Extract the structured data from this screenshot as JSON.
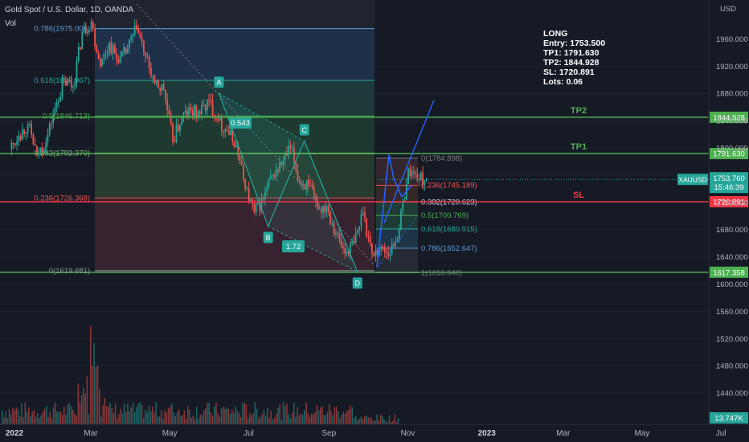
{
  "header": {
    "symbol_title": "Gold Spot / U.S. Dollar, 1D, OANDA",
    "volume_label": "Vol",
    "currency": "USD"
  },
  "trade_box": {
    "lines": [
      "LONG",
      "Entry: 1753.500",
      "TP1: 1791.630",
      "TP2: 1844.928",
      "SL: 1720.891",
      "Lots: 0.06"
    ]
  },
  "colors": {
    "background": "#161a25",
    "up": "#26a69a",
    "down": "#ef5350",
    "tp_line": "#4caf50",
    "sl_line": "#f23645",
    "pattern": "#2962ff"
  },
  "chart_data": {
    "type": "candlestick",
    "title": "Gold Spot / U.S. Dollar, 1D, OANDA",
    "y_axis": {
      "ticks": [
        1440,
        1480,
        1520,
        1560,
        1600,
        1640,
        1680,
        1720,
        1760,
        1800,
        1840,
        1880,
        1920,
        1960
      ],
      "tick_labels": [
        "1440.000",
        "1480.000",
        "1520.000",
        "1560.000",
        "1600.000",
        "1640.000",
        "1680.000",
        "1720.000",
        "1760.000",
        "1800.000",
        "1840.000",
        "1880.000",
        "1920.000",
        "1960.000"
      ]
    },
    "x_axis": {
      "ticks": [
        "2022-01-01",
        "2022-03-01",
        "2022-05-01",
        "2022-07-01",
        "2022-09-01",
        "2022-11-01",
        "2023-01-01",
        "2023-03-01",
        "2023-05-01",
        "2023-07-01"
      ],
      "tick_labels": [
        "2022",
        "Mar",
        "May",
        "Jul",
        "Sep",
        "Nov",
        "2023",
        "Mar",
        "May",
        "Jul"
      ]
    },
    "horizontal_levels": [
      {
        "label": "TP2",
        "value": 1844.928,
        "price_label": "1844.928",
        "color": "#4caf50"
      },
      {
        "label": "TP1",
        "value": 1791.63,
        "price_label": "1791.630",
        "color": "#4caf50"
      },
      {
        "label": "SL",
        "value": 1720.891,
        "price_label": "1720.891",
        "color": "#f23645"
      },
      {
        "label": "",
        "value": 1617.358,
        "price_label": "1617.358",
        "color": "#4caf50"
      }
    ],
    "current_price": {
      "symbol": "XAUUSD",
      "price": "1753.760",
      "countdown": "15:46:39"
    },
    "volume_label": "13.747K",
    "fib_retracement_left": [
      {
        "level": "0.786",
        "value": 1975.004,
        "label": "0.786(1975.004)"
      },
      {
        "level": "0.618",
        "value": 1899.067,
        "label": "0.618(1899.067)"
      },
      {
        "level": "0.5",
        "value": 1846.713,
        "label": "0.5(1846.713)"
      },
      {
        "level": "0.382",
        "value": 1792.37,
        "label": "0.382(1792.370)"
      },
      {
        "level": "0.236",
        "value": 1726.368,
        "label": "0.236(1726.368)"
      },
      {
        "level": "0",
        "value": 1619.681,
        "label": "0(1619.681)"
      }
    ],
    "fib_retracement_right": [
      {
        "level": "0",
        "value": 1784.898,
        "label": "0(1784.898)"
      },
      {
        "level": "0.236",
        "value": 1745.189,
        "label": "0.236(1745.189)"
      },
      {
        "level": "0.382",
        "value": 1720.623,
        "label": "0.382(1720.623)"
      },
      {
        "level": "0.5",
        "value": 1700.769,
        "label": "0.5(1700.769)"
      },
      {
        "level": "0.618",
        "value": 1680.915,
        "label": "0.618(1680.915)"
      },
      {
        "level": "0.786",
        "value": 1652.647,
        "label": "0.786(1652.647)"
      },
      {
        "level": "1",
        "value": 1616.64,
        "label": "1(1616.640)"
      }
    ],
    "abcd_pattern": [
      {
        "label": "A",
        "date": "2022-06-13",
        "value": 1880
      },
      {
        "label": "B",
        "date": "2022-07-21",
        "value": 1685
      },
      {
        "label": "C",
        "date": "2022-08-18",
        "value": 1810
      },
      {
        "label": "D",
        "date": "2022-09-28",
        "value": 1618
      }
    ],
    "pattern_ratios": [
      "0.543",
      "1.72"
    ],
    "close_series": {
      "dates": [
        "2022-01-03",
        "2022-01-10",
        "2022-01-17",
        "2022-01-24",
        "2022-01-31",
        "2022-02-07",
        "2022-02-14",
        "2022-02-21",
        "2022-02-28",
        "2022-03-07",
        "2022-03-14",
        "2022-03-21",
        "2022-03-28",
        "2022-04-04",
        "2022-04-11",
        "2022-04-18",
        "2022-04-25",
        "2022-05-02",
        "2022-05-09",
        "2022-05-16",
        "2022-05-23",
        "2022-05-30",
        "2022-06-06",
        "2022-06-13",
        "2022-06-20",
        "2022-06-27",
        "2022-07-04",
        "2022-07-11",
        "2022-07-18",
        "2022-07-25",
        "2022-08-01",
        "2022-08-08",
        "2022-08-15",
        "2022-08-22",
        "2022-08-29",
        "2022-09-05",
        "2022-09-12",
        "2022-09-19",
        "2022-09-26",
        "2022-10-03",
        "2022-10-10",
        "2022-10-17",
        "2022-10-24",
        "2022-10-31",
        "2022-11-07",
        "2022-11-14",
        "2022-11-21"
      ],
      "values": [
        1798,
        1818,
        1835,
        1790,
        1808,
        1860,
        1898,
        1890,
        1970,
        1985,
        1920,
        1955,
        1925,
        1945,
        1975,
        1935,
        1895,
        1885,
        1810,
        1845,
        1855,
        1850,
        1870,
        1840,
        1825,
        1805,
        1740,
        1705,
        1725,
        1760,
        1775,
        1800,
        1750,
        1745,
        1710,
        1715,
        1675,
        1645,
        1660,
        1705,
        1645,
        1655,
        1645,
        1680,
        1770,
        1755,
        1753
      ]
    }
  }
}
